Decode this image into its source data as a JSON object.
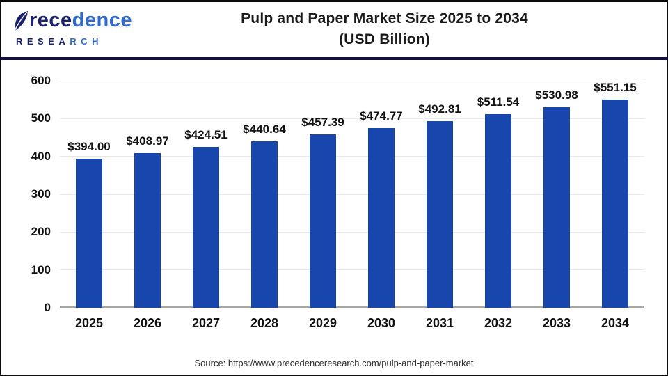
{
  "header": {
    "logo": {
      "word_dark": "rece",
      "word_light": "dence",
      "sub_dark": "RESEA",
      "sub_light": "RCH",
      "navy": "#1b2370",
      "blue": "#2f6bcb"
    },
    "title_line1": "Pulp and Paper Market Size 2025 to 2034",
    "title_line2": "(USD Billion)"
  },
  "chart_data": {
    "type": "bar",
    "title": "Pulp and Paper Market Size 2025 to 2034 (USD Billion)",
    "categories": [
      "2025",
      "2026",
      "2027",
      "2028",
      "2029",
      "2030",
      "2031",
      "2032",
      "2033",
      "2034"
    ],
    "values": [
      394.0,
      408.97,
      424.51,
      440.64,
      457.39,
      474.77,
      492.81,
      511.54,
      530.98,
      551.15
    ],
    "value_labels": [
      "$394.00",
      "$408.97",
      "$424.51",
      "$440.64",
      "$457.39",
      "$474.77",
      "$492.81",
      "$511.54",
      "$530.98",
      "$551.15"
    ],
    "xlabel": "",
    "ylabel": "",
    "ylim": [
      0,
      600
    ],
    "yticks": [
      0,
      100,
      200,
      300,
      400,
      500,
      600
    ],
    "grid": true,
    "legend_position": "none",
    "bar_color": "#1747ad",
    "gridline_color": "#e9e9e9",
    "axis_line_color": "#a6a6a6",
    "label_color": "#111111"
  },
  "footer": {
    "source": "Source: https://www.precedenceresearch.com/pulp-and-paper-market"
  }
}
